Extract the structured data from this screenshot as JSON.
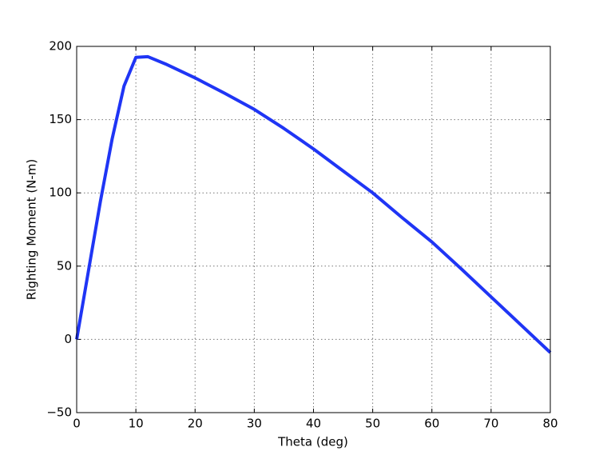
{
  "chart_data": {
    "type": "line",
    "x_label": "Theta (deg)",
    "y_label": "Righting Moment (N-m)",
    "x": [
      0,
      2,
      4,
      6,
      8,
      10,
      12,
      15,
      20,
      25,
      30,
      35,
      40,
      45,
      50,
      55,
      60,
      65,
      70,
      75,
      80
    ],
    "series": [
      {
        "name": "Righting Moment",
        "color": "#1f35f5",
        "values": [
          0,
          47,
          94,
          137,
          173,
          192.5,
          193,
          188,
          178.5,
          168,
          157,
          144,
          130,
          115,
          100,
          83,
          66.5,
          48,
          29,
          10,
          -9
        ]
      }
    ],
    "xlim": [
      0,
      80
    ],
    "xticks": [
      0,
      10,
      20,
      30,
      40,
      50,
      60,
      70,
      80
    ],
    "ylim": [
      -50,
      200
    ],
    "yticks": [
      {
        "value": -50,
        "label": "−50"
      },
      0,
      50,
      100,
      150,
      200
    ],
    "grid": true
  }
}
